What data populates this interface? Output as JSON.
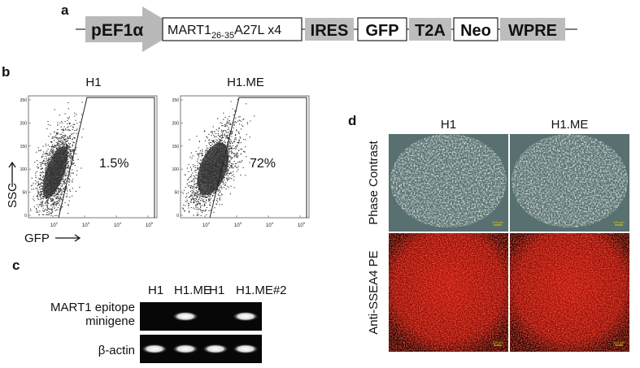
{
  "panel_a": {
    "label": "a",
    "promoter": "pEF1α",
    "insert": {
      "name": "MART1",
      "subscript": "26-35",
      "suffix": "A27L x4"
    },
    "elements": [
      "IRES",
      "GFP",
      "T2A",
      "Neo",
      "WPRE"
    ]
  },
  "panel_b": {
    "label": "b",
    "plots": [
      {
        "title": "H1",
        "gate_percent": "1.5%"
      },
      {
        "title": "H1.ME",
        "gate_percent": "72%"
      }
    ],
    "y_axis_label": "SSC",
    "x_axis_label": "GFP",
    "y_ticks": [
      0,
      50,
      100,
      150,
      200,
      250
    ],
    "x_ticks": [
      {
        "base": "10",
        "exp": "2"
      },
      {
        "base": "10",
        "exp": "3"
      },
      {
        "base": "10",
        "exp": "4"
      },
      {
        "base": "10",
        "exp": "5"
      }
    ]
  },
  "panel_c": {
    "label": "c",
    "lanes": [
      "H1",
      "H1.ME",
      "H1",
      "H1.ME#2"
    ],
    "rows": [
      {
        "label_lines": [
          "MART1 epitope",
          "minigene"
        ],
        "bands": [
          false,
          true,
          false,
          true
        ]
      },
      {
        "label_lines": [
          "β-actin"
        ],
        "bands": [
          true,
          true,
          true,
          true
        ]
      }
    ]
  },
  "panel_d": {
    "label": "d",
    "columns": [
      "H1",
      "H1.ME"
    ],
    "rows": [
      "Phase Contrast",
      "Anti-SSEA4 PE"
    ],
    "scale_bar": "100 μm"
  }
}
